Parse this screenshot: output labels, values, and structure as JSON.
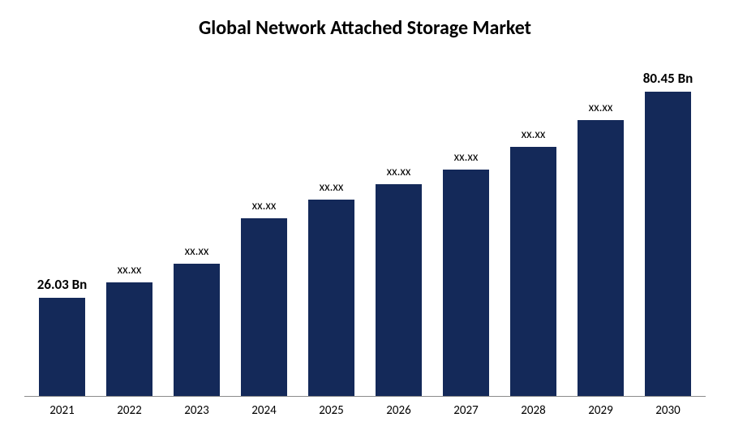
{
  "chart": {
    "type": "bar",
    "title": "Global Network Attached Storage Market",
    "title_fontsize": 24,
    "background_color": "#ffffff",
    "bar_color": "#142959",
    "axis_color": "#8c8c8c",
    "label_fontsize": 15,
    "datalabel_fontsize": 15,
    "datalabel_fontsize_bold": 17,
    "ylim": [
      0,
      90
    ],
    "bar_width": 0.72,
    "categories": [
      "2021",
      "2022",
      "2023",
      "2024",
      "2025",
      "2026",
      "2027",
      "2028",
      "2029",
      "2030"
    ],
    "values": [
      26.03,
      30,
      35,
      47,
      52,
      56,
      60,
      66,
      73,
      80.45
    ],
    "data_labels": [
      "26.03 Bn",
      "xx.xx",
      "xx.xx",
      "xx.xx",
      "xx.xx",
      "xx.xx",
      "xx.xx",
      "xx.xx",
      "xx.xx",
      "80.45 Bn"
    ],
    "data_label_bold": [
      true,
      false,
      false,
      false,
      false,
      false,
      false,
      false,
      false,
      true
    ]
  }
}
